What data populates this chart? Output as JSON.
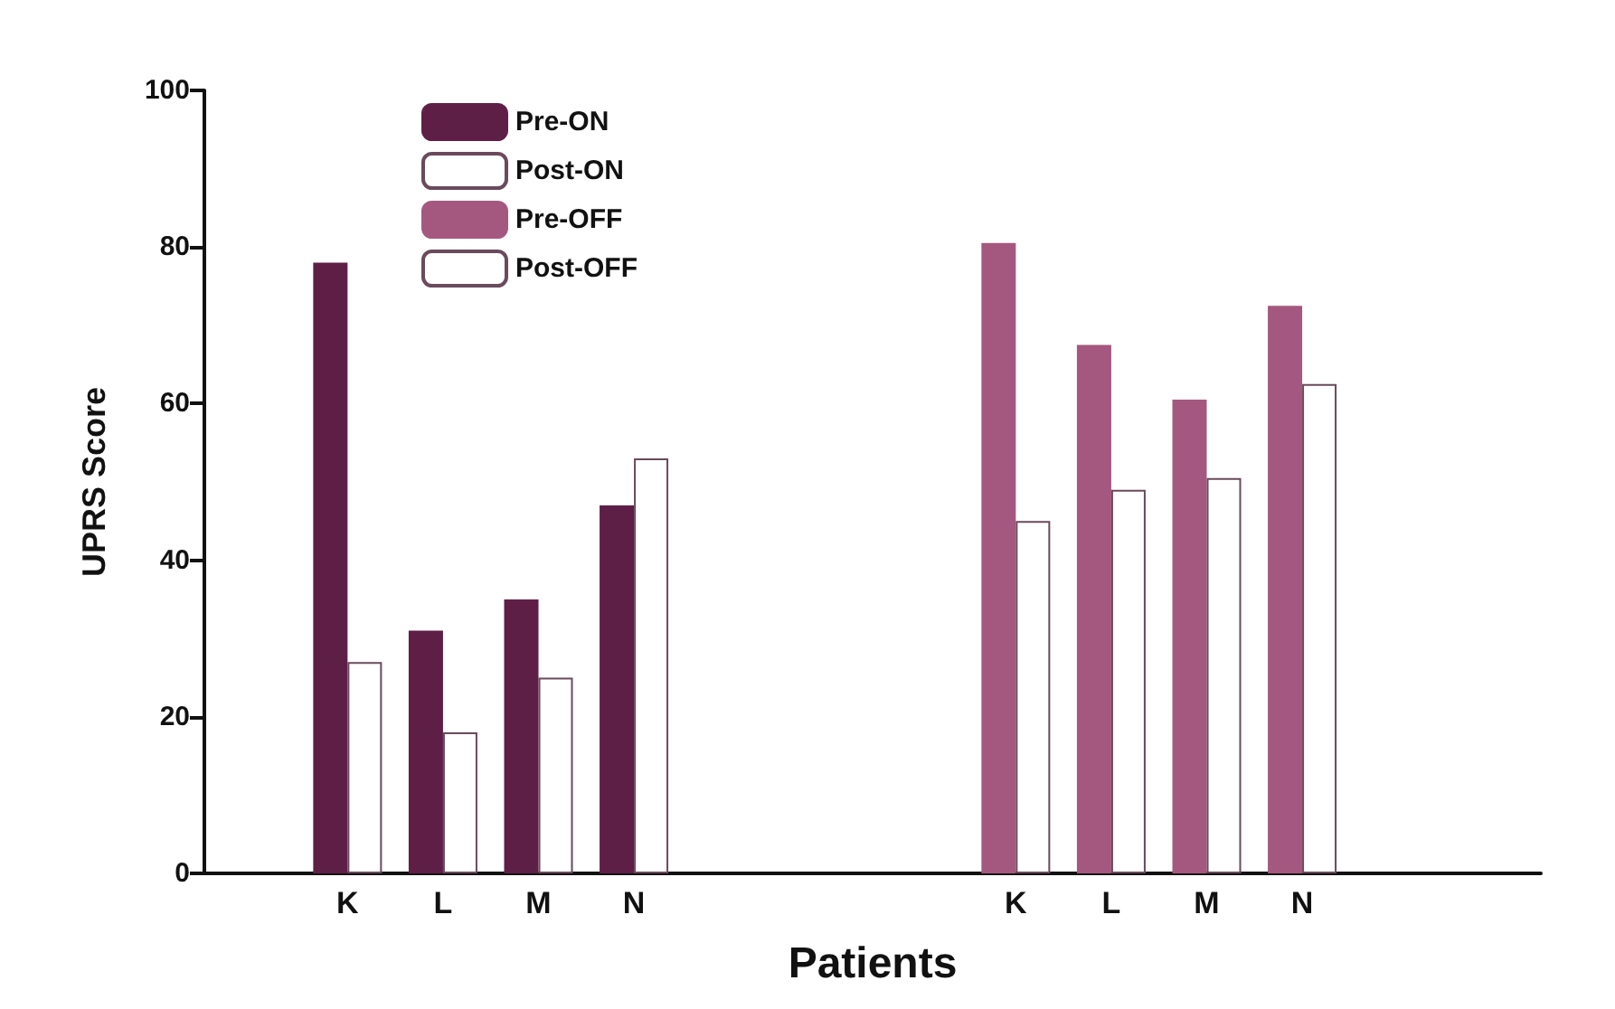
{
  "chart_data": {
    "type": "bar",
    "xlabel": "Patients",
    "ylabel": "UPRS Score",
    "categories": [
      null,
      "K",
      "L",
      "M",
      "N",
      null,
      null,
      null,
      "K",
      "L",
      "M",
      "N",
      null,
      null
    ],
    "series": [
      {
        "name": "Pre-ON",
        "color": "#5e1f47",
        "values": [
          null,
          78,
          31,
          35,
          47,
          null,
          null,
          null,
          null,
          null,
          null,
          null,
          null,
          null
        ]
      },
      {
        "name": "Post-ON",
        "color": "#ffffff",
        "values": [
          null,
          27,
          18,
          25,
          53,
          null,
          null,
          null,
          null,
          null,
          null,
          null,
          null,
          null
        ]
      },
      {
        "name": "Pre-OFF",
        "color": "#a5587f",
        "values": [
          null,
          null,
          null,
          null,
          null,
          null,
          null,
          null,
          80.5,
          67.5,
          60.5,
          72.5,
          null,
          null
        ]
      },
      {
        "name": "Post-OFF",
        "color": "#ffffff",
        "values": [
          null,
          null,
          null,
          null,
          null,
          null,
          null,
          null,
          45,
          49,
          50.5,
          62.5,
          null,
          null
        ]
      }
    ],
    "ylim": [
      0,
      100
    ],
    "yticks": [
      0,
      20,
      40,
      60,
      80,
      100
    ],
    "grid": false,
    "legend": "top left"
  }
}
